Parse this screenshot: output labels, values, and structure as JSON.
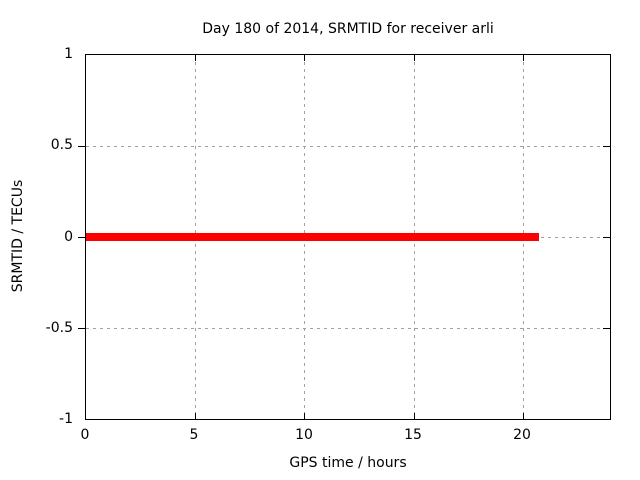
{
  "chart_data": {
    "type": "line",
    "title": "Day 180 of 2014, SRMTID for receiver arli",
    "xlabel": "GPS time / hours",
    "ylabel": "SRMTID / TECUs",
    "xlim": [
      0,
      24
    ],
    "ylim": [
      -1,
      1
    ],
    "grid": true,
    "x_ticks": [
      "0",
      "5",
      "10",
      "15",
      "20"
    ],
    "x_tick_values": [
      0,
      5,
      10,
      15,
      20
    ],
    "y_ticks": [
      "1",
      "0.5",
      "0",
      "-0.5",
      "-1"
    ],
    "y_tick_values": [
      1,
      0.5,
      0,
      -0.5,
      -1
    ],
    "series": [
      {
        "name": "SRMTID",
        "color": "#ff0000",
        "x_start": 0,
        "x_end": 20.75,
        "y": 0,
        "description": "thick horizontal line at SRMTID = 0 TECUs spanning GPS time 0 to about 20.75 hours"
      }
    ],
    "legend": "none"
  },
  "colors": {
    "background": "#ffffff",
    "axis": "#000000",
    "grid": "#a0a0a0",
    "text": "#000000",
    "series": "#ff0000"
  }
}
